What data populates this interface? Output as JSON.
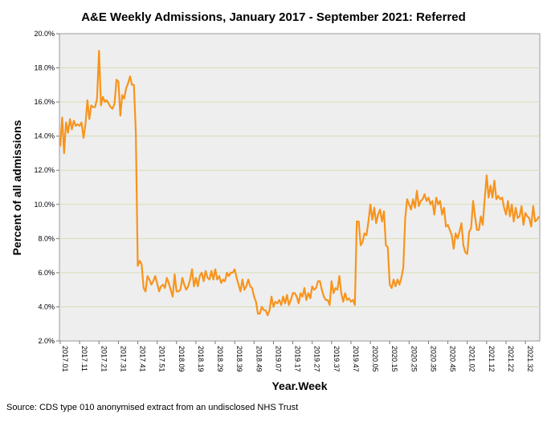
{
  "chart_data": {
    "type": "line",
    "title": "A&E Weekly Admissions, January 2017 - September 2021: Referred",
    "xlabel": "Year.Week",
    "ylabel": "Percent of all admissions",
    "ylim": [
      2.0,
      20.0
    ],
    "yticks": [
      "2.0%",
      "4.0%",
      "6.0%",
      "8.0%",
      "10.0%",
      "12.0%",
      "14.0%",
      "16.0%",
      "18.0%",
      "20.0%"
    ],
    "ytick_values": [
      2,
      4,
      6,
      8,
      10,
      12,
      14,
      16,
      18,
      20
    ],
    "xticks": [
      "2017.01",
      "2017.11",
      "2017.21",
      "2017.31",
      "2017.41",
      "2017.51",
      "2018.09",
      "2018.19",
      "2018.29",
      "2018.39",
      "2018.49",
      "2019.07",
      "2019.17",
      "2019.27",
      "2019.37",
      "2019.47",
      "2020.05",
      "2020.15",
      "2020.25",
      "2020.35",
      "2020.45",
      "2021.02",
      "2021.12",
      "2021.22",
      "2021.32"
    ],
    "xtick_index": [
      0,
      10,
      20,
      30,
      40,
      50,
      60,
      70,
      80,
      90,
      100,
      110,
      120,
      130,
      140,
      150,
      160,
      170,
      180,
      190,
      200,
      210,
      220,
      230,
      240
    ],
    "grid": true,
    "legend": "none",
    "line_color": "#F7941D",
    "series": [
      {
        "name": "Referred",
        "values": [
          13.4,
          15.1,
          13.0,
          14.8,
          14.2,
          15.0,
          14.4,
          14.9,
          14.6,
          14.7,
          14.6,
          14.8,
          13.9,
          14.7,
          16.1,
          15.0,
          15.8,
          15.7,
          15.7,
          16.2,
          19.0,
          15.8,
          16.3,
          16.0,
          16.1,
          15.9,
          15.7,
          15.6,
          15.9,
          17.3,
          17.2,
          15.2,
          16.4,
          16.2,
          16.8,
          17.1,
          17.5,
          17.0,
          17.0,
          14.2,
          6.4,
          6.7,
          6.5,
          5.1,
          4.9,
          5.8,
          5.6,
          5.3,
          5.5,
          5.8,
          5.4,
          4.9,
          5.2,
          5.3,
          5.1,
          5.7,
          5.4,
          5.0,
          4.6,
          5.9,
          4.9,
          4.9,
          5.0,
          5.7,
          5.3,
          5.0,
          5.2,
          5.6,
          6.2,
          5.2,
          5.7,
          5.2,
          5.8,
          6.0,
          5.5,
          6.1,
          5.7,
          5.6,
          6.1,
          5.6,
          6.2,
          5.6,
          5.8,
          5.4,
          5.6,
          5.5,
          6.0,
          5.8,
          6.0,
          6.0,
          6.2,
          5.7,
          5.3,
          4.9,
          5.6,
          5.0,
          5.2,
          5.6,
          5.2,
          5.1,
          4.6,
          4.3,
          3.6,
          3.6,
          4.0,
          3.8,
          3.8,
          3.5,
          3.8,
          4.6,
          4.0,
          4.3,
          4.2,
          4.4,
          4.1,
          4.6,
          4.2,
          4.7,
          4.1,
          4.4,
          4.8,
          4.8,
          4.6,
          4.2,
          4.8,
          4.6,
          5.1,
          4.4,
          4.8,
          4.5,
          5.2,
          5.0,
          5.1,
          5.5,
          5.5,
          5.0,
          4.6,
          4.4,
          4.4,
          4.1,
          5.5,
          4.8,
          5.1,
          5.0,
          5.8,
          4.8,
          4.3,
          4.8,
          4.4,
          4.5,
          4.3,
          4.4,
          4.1,
          9.0,
          9.0,
          7.6,
          7.8,
          8.3,
          8.2,
          9.0,
          10.0,
          9.1,
          9.8,
          8.9,
          9.4,
          9.7,
          9.0,
          9.6,
          7.6,
          7.5,
          5.3,
          5.1,
          5.6,
          5.2,
          5.6,
          5.3,
          5.7,
          6.3,
          9.2,
          10.3,
          10.0,
          9.7,
          10.3,
          9.8,
          10.8,
          9.9,
          10.2,
          10.3,
          10.6,
          10.2,
          10.4,
          10.0,
          10.2,
          9.4,
          10.4,
          10.0,
          10.2,
          9.4,
          9.8,
          8.7,
          8.8,
          8.5,
          8.2,
          7.4,
          8.3,
          8.0,
          8.4,
          8.9,
          7.6,
          7.2,
          7.1,
          8.4,
          8.6,
          10.2,
          9.3,
          8.5,
          8.5,
          9.3,
          8.8,
          10.3,
          11.7,
          10.4,
          11.1,
          10.4,
          11.4,
          10.3,
          10.5,
          10.3,
          10.4,
          9.8,
          9.4,
          10.2,
          9.3,
          10.0,
          9.0,
          9.8,
          9.2,
          9.3,
          9.9,
          8.8,
          9.5,
          9.3,
          9.2,
          8.7,
          9.9,
          9.0,
          9.1,
          9.3
        ]
      }
    ]
  },
  "source_note": "Source: CDS type 010 anonymised extract from an undisclosed NHS Trust"
}
